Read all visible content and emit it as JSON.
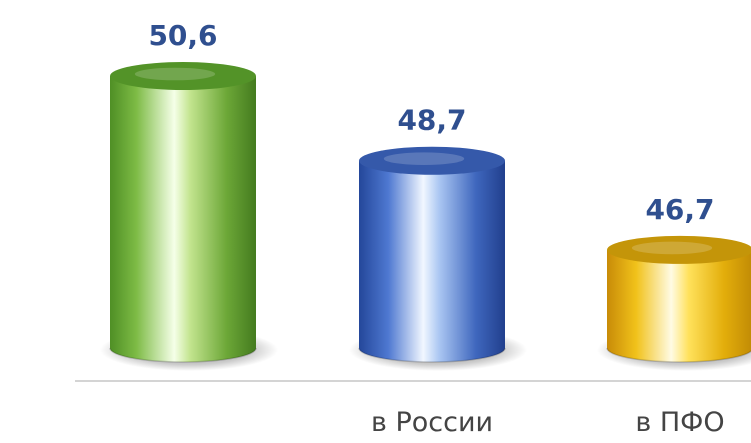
{
  "chart_data": {
    "type": "bar",
    "categories": [
      "",
      "в России",
      "в ПФО"
    ],
    "values": [
      50.6,
      48.7,
      46.7
    ],
    "value_labels": [
      "50,6",
      "48,7",
      "46,7"
    ],
    "title": "",
    "xlabel": "",
    "ylabel": "",
    "ylim": [
      44.5,
      51.2
    ],
    "grid": false,
    "legend": "none",
    "bar_style": "3d-cylinder",
    "colors": [
      "#5fa82e",
      "#3d66c2",
      "#e0aa0b"
    ],
    "label_color": "#2f4f8f"
  }
}
